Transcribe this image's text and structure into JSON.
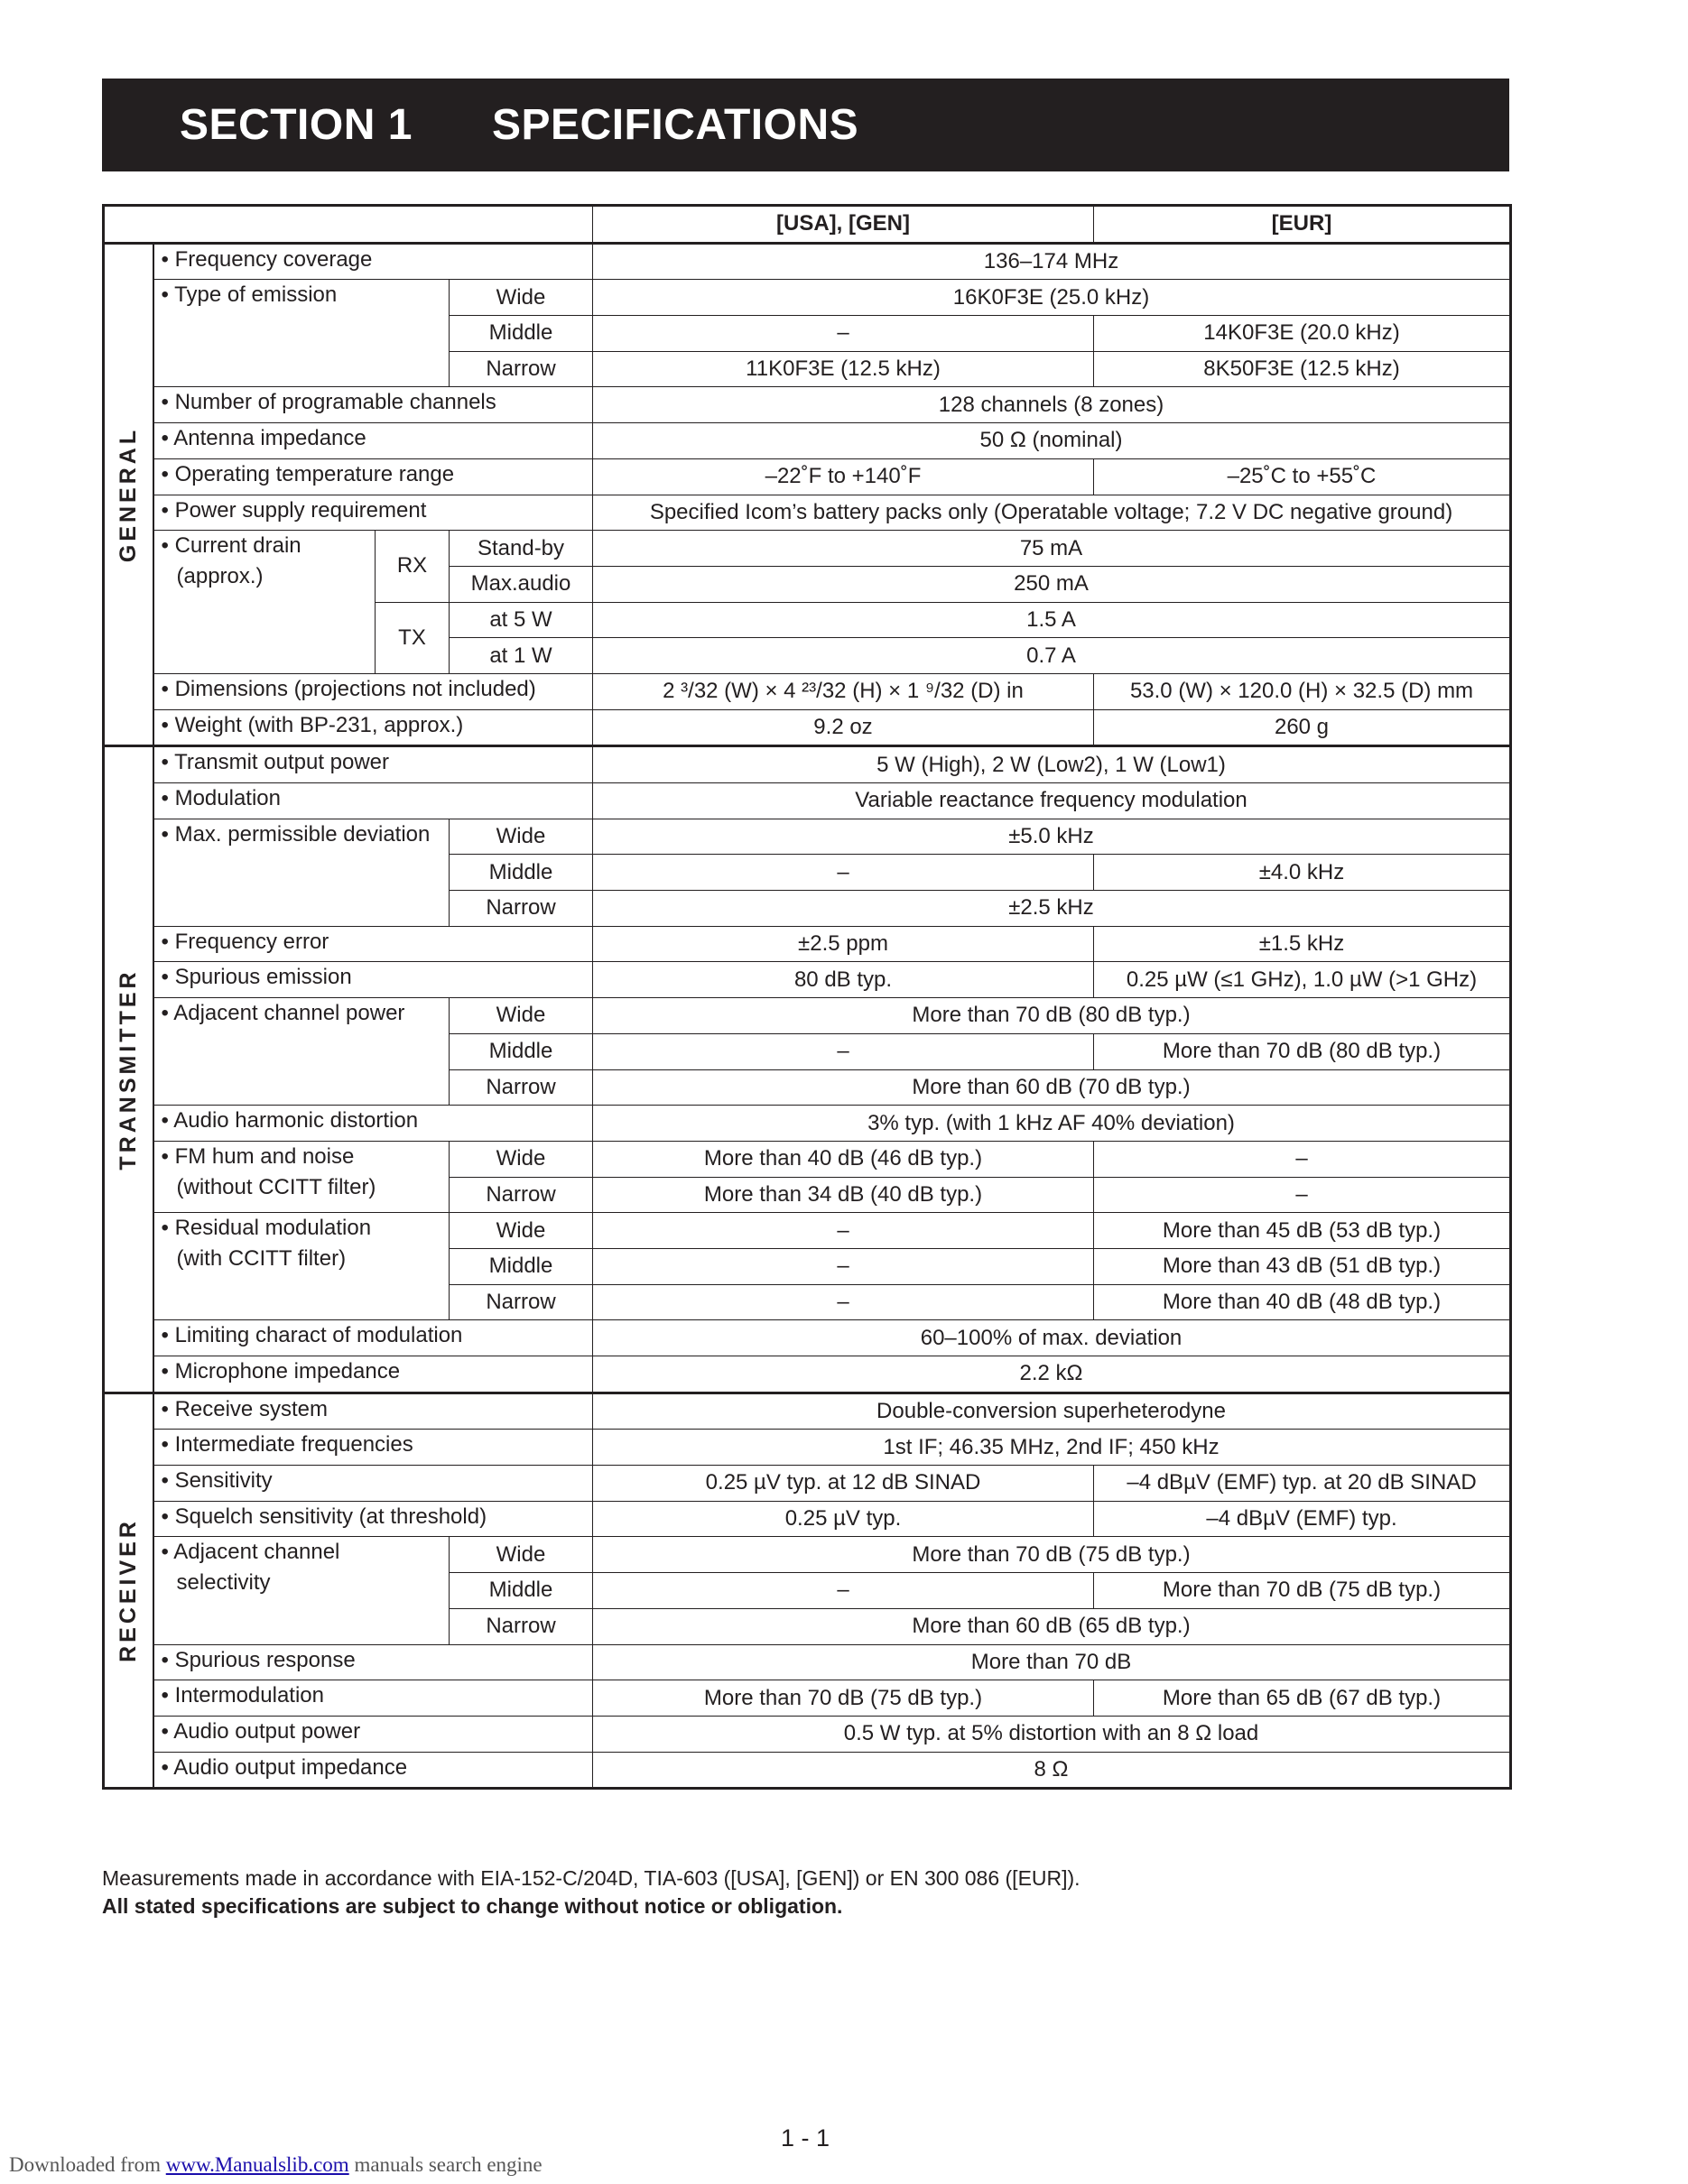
{
  "header": {
    "section": "SECTION 1",
    "title": "SPECIFICATIONS"
  },
  "columns": {
    "usa": "[USA], [GEN]",
    "eur": "[EUR]"
  },
  "sections": [
    {
      "name": "GENERAL",
      "items": [
        {
          "label": [
            "• Frequency coverage"
          ],
          "rows": [
            {
              "all": "136–174 MHz"
            }
          ]
        },
        {
          "label": [
            "• Type of emission"
          ],
          "rows": [
            {
              "sub": "Wide",
              "all": "16K0F3E (25.0 kHz)"
            },
            {
              "sub": "Middle",
              "usa": "–",
              "eur": "14K0F3E (20.0 kHz)"
            },
            {
              "sub": "Narrow",
              "usa": "11K0F3E (12.5 kHz)",
              "eur": "8K50F3E (12.5 kHz)"
            }
          ]
        },
        {
          "label": [
            "• Number of programable channels"
          ],
          "rows": [
            {
              "all": "128 channels (8 zones)"
            }
          ]
        },
        {
          "label": [
            "• Antenna impedance"
          ],
          "rows": [
            {
              "all": "50 Ω (nominal)"
            }
          ]
        },
        {
          "label": [
            "• Operating temperature range"
          ],
          "rows": [
            {
              "usa": "–22˚F to +140˚F",
              "eur": "–25˚C to +55˚C"
            }
          ]
        },
        {
          "label": [
            "• Power supply requirement"
          ],
          "rows": [
            {
              "all": "Specified Icom’s battery packs only (Operatable voltage; 7.2 V DC negative ground)"
            }
          ]
        },
        {
          "label": [
            "• Current drain",
            "(approx.)"
          ],
          "rows": [
            {
              "group": "RX",
              "sub": "Stand-by",
              "all": "75 mA"
            },
            {
              "group": "RX",
              "sub": "Max.audio",
              "all": "250 mA"
            },
            {
              "group": "TX",
              "sub": "at 5 W",
              "all": "1.5 A"
            },
            {
              "group": "TX",
              "sub": "at 1 W",
              "all": "0.7 A"
            }
          ]
        },
        {
          "label": [
            "• Dimensions (projections not included)"
          ],
          "rows": [
            {
              "usa": "2 ³/32 (W) × 4 ²³/32 (H) × 1 ⁹/32 (D) in",
              "eur": "53.0 (W) × 120.0 (H) × 32.5 (D) mm"
            }
          ]
        },
        {
          "label": [
            "• Weight (with BP-231, approx.)"
          ],
          "rows": [
            {
              "usa": "9.2 oz",
              "eur": "260 g"
            }
          ]
        }
      ]
    },
    {
      "name": "TRANSMITTER",
      "items": [
        {
          "label": [
            "• Transmit output power"
          ],
          "rows": [
            {
              "all": "5 W (High), 2 W (Low2), 1 W (Low1)"
            }
          ]
        },
        {
          "label": [
            "• Modulation"
          ],
          "rows": [
            {
              "all": "Variable reactance frequency modulation"
            }
          ]
        },
        {
          "label": [
            "• Max. permissible deviation"
          ],
          "rows": [
            {
              "sub": "Wide",
              "all": "±5.0 kHz"
            },
            {
              "sub": "Middle",
              "usa": "–",
              "eur": "±4.0 kHz"
            },
            {
              "sub": "Narrow",
              "all": "±2.5 kHz"
            }
          ]
        },
        {
          "label": [
            "• Frequency error"
          ],
          "rows": [
            {
              "usa": "±2.5 ppm",
              "eur": "±1.5 kHz"
            }
          ]
        },
        {
          "label": [
            "• Spurious emission"
          ],
          "rows": [
            {
              "usa": "80 dB typ.",
              "eur": "0.25 µW (≤1 GHz), 1.0 µW (>1 GHz)"
            }
          ]
        },
        {
          "label": [
            "• Adjacent channel power"
          ],
          "rows": [
            {
              "sub": "Wide",
              "all": "More than 70 dB (80 dB typ.)"
            },
            {
              "sub": "Middle",
              "usa": "–",
              "eur": "More than 70 dB (80 dB typ.)"
            },
            {
              "sub": "Narrow",
              "all": "More than 60 dB (70 dB typ.)"
            }
          ]
        },
        {
          "label": [
            "• Audio harmonic distortion"
          ],
          "rows": [
            {
              "all": "3% typ. (with 1 kHz AF 40% deviation)"
            }
          ]
        },
        {
          "label": [
            "• FM hum and noise",
            "(without CCITT filter)"
          ],
          "rows": [
            {
              "sub": "Wide",
              "usa": "More than 40 dB (46 dB typ.)",
              "eur": "–"
            },
            {
              "sub": "Narrow",
              "usa": "More than 34 dB (40 dB typ.)",
              "eur": "–"
            }
          ]
        },
        {
          "label": [
            "• Residual modulation",
            "(with CCITT filter)"
          ],
          "rows": [
            {
              "sub": "Wide",
              "usa": "–",
              "eur": "More than 45 dB (53 dB typ.)"
            },
            {
              "sub": "Middle",
              "usa": "–",
              "eur": "More than 43 dB (51 dB typ.)"
            },
            {
              "sub": "Narrow",
              "usa": "–",
              "eur": "More than 40 dB (48 dB typ.)"
            }
          ]
        },
        {
          "label": [
            "• Limiting charact of modulation"
          ],
          "rows": [
            {
              "all": "60–100% of max. deviation"
            }
          ]
        },
        {
          "label": [
            "• Microphone impedance"
          ],
          "rows": [
            {
              "all": "2.2 kΩ"
            }
          ]
        }
      ]
    },
    {
      "name": "RECEIVER",
      "items": [
        {
          "label": [
            "• Receive system"
          ],
          "rows": [
            {
              "all": "Double-conversion superheterodyne"
            }
          ]
        },
        {
          "label": [
            "• Intermediate frequencies"
          ],
          "rows": [
            {
              "all": "1st IF; 46.35 MHz, 2nd IF; 450 kHz"
            }
          ]
        },
        {
          "label": [
            "• Sensitivity"
          ],
          "rows": [
            {
              "usa": "0.25 µV typ. at 12 dB SINAD",
              "eur": "–4 dBµV (EMF) typ. at 20 dB SINAD"
            }
          ]
        },
        {
          "label": [
            "• Squelch sensitivity (at threshold)"
          ],
          "rows": [
            {
              "usa": "0.25 µV typ.",
              "eur": "–4 dBµV (EMF) typ."
            }
          ]
        },
        {
          "label": [
            "• Adjacent channel",
            "selectivity"
          ],
          "rows": [
            {
              "sub": "Wide",
              "all": "More than 70 dB (75 dB typ.)"
            },
            {
              "sub": "Middle",
              "usa": "–",
              "eur": "More than 70 dB (75 dB typ.)"
            },
            {
              "sub": "Narrow",
              "all": "More than 60 dB (65 dB typ.)"
            }
          ]
        },
        {
          "label": [
            "• Spurious response"
          ],
          "rows": [
            {
              "all": "More than 70 dB"
            }
          ]
        },
        {
          "label": [
            "• Intermodulation"
          ],
          "rows": [
            {
              "usa": "More than 70 dB (75 dB typ.)",
              "eur": "More than 65 dB (67 dB typ.)"
            }
          ]
        },
        {
          "label": [
            "• Audio output power"
          ],
          "rows": [
            {
              "all": "0.5 W typ. at 5% distortion with an 8 Ω load"
            }
          ]
        },
        {
          "label": [
            "• Audio output impedance"
          ],
          "rows": [
            {
              "all": "8 Ω"
            }
          ]
        }
      ]
    }
  ],
  "notes": {
    "measurement": "Measurements made in accordance with EIA-152-C/204D, TIA-603 ([USA], [GEN]) or EN 300 086 ([EUR]).",
    "disclaimer": "All stated specifications are subject to change without notice or obligation."
  },
  "page_number": "1 - 1",
  "download": {
    "prefix": "Downloaded from ",
    "link": "www.Manualslib.com",
    "suffix": " manuals search engine"
  }
}
